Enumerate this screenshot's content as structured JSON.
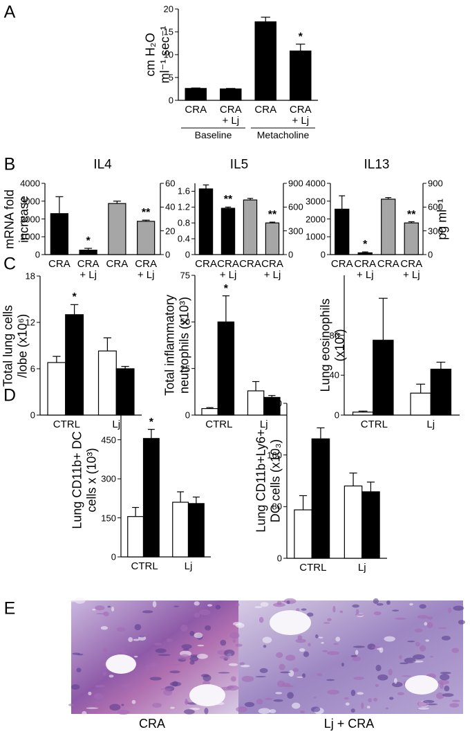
{
  "panel_labels": [
    "A",
    "B",
    "C",
    "D",
    "E"
  ],
  "histology": {
    "labels": [
      "CRA",
      "Lj + CRA"
    ]
  },
  "chart_data": [
    {
      "type": "bar",
      "ylabel": [
        "cm H₂O",
        "ml⁻¹ sec⁻¹"
      ],
      "categories": [
        "CRA",
        "CRA + Lj",
        "CRA",
        "CRA + Lj"
      ],
      "groups": [
        "Baseline",
        "Metacholine"
      ],
      "series": [
        {
          "color": "#000000",
          "values": [
            2.6,
            2.5,
            17.2,
            10.8
          ],
          "errors": [
            0.1,
            0.1,
            1.0,
            1.5
          ]
        }
      ],
      "ylim": [
        0,
        20
      ],
      "yticks": [
        0,
        5,
        10,
        15,
        20
      ],
      "annotations": [
        {
          "text": "*",
          "series": 0,
          "index": 3
        }
      ]
    },
    {
      "type": "bar",
      "title": "IL4",
      "ylabel": [
        "mRNA fold",
        "increase"
      ],
      "categories": [
        "CRA",
        "CRA + Lj",
        "CRA",
        "CRA + Lj"
      ],
      "series": [
        {
          "color": "#000000",
          "values": [
            2300,
            250,
            null,
            null
          ],
          "errors": [
            950,
            100,
            null,
            null
          ]
        },
        {
          "color": "#a6a6a6",
          "axis": "y2",
          "values": [
            null,
            null,
            43,
            28
          ],
          "errors": [
            null,
            null,
            2,
            1
          ]
        }
      ],
      "ylim": [
        0,
        4000
      ],
      "yticks": [
        0,
        1000,
        2000,
        3000,
        4000
      ],
      "y2lim": [
        0,
        60
      ],
      "y2ticks": [
        0,
        20,
        40,
        60
      ],
      "annotations": [
        {
          "text": "*",
          "series": 0,
          "index": 1
        },
        {
          "text": "**",
          "series": 1,
          "index": 3
        }
      ]
    },
    {
      "type": "bar",
      "title": "IL5",
      "categories": [
        "CRA",
        "CRA + Lj",
        "CRA",
        "CRA + Lj"
      ],
      "series": [
        {
          "color": "#000000",
          "values": [
            1.66,
            1.17,
            null,
            null
          ],
          "errors": [
            0.1,
            0.03,
            null,
            null
          ]
        },
        {
          "color": "#a6a6a6",
          "axis": "y2",
          "values": [
            null,
            null,
            690,
            400
          ],
          "errors": [
            null,
            null,
            20,
            10
          ]
        }
      ],
      "ylim": [
        0,
        1.8
      ],
      "yticks": [
        0,
        0.4,
        0.8,
        1.2,
        1.6
      ],
      "y2lim": [
        0,
        900
      ],
      "y2ticks": [
        0,
        300,
        600,
        900
      ],
      "annotations": [
        {
          "text": "**",
          "series": 0,
          "index": 1
        },
        {
          "text": "**",
          "series": 1,
          "index": 3
        }
      ]
    },
    {
      "type": "bar",
      "title": "IL13",
      "y2label": [
        "pg ml⁻¹"
      ],
      "categories": [
        "CRA",
        "CRA + Lj",
        "CRA",
        "CRA + Lj"
      ],
      "series": [
        {
          "color": "#000000",
          "values": [
            2550,
            100,
            null,
            null
          ],
          "errors": [
            750,
            50,
            null,
            null
          ]
        },
        {
          "color": "#a6a6a6",
          "axis": "y2",
          "values": [
            null,
            null,
            700,
            400
          ],
          "errors": [
            null,
            null,
            20,
            15
          ]
        }
      ],
      "ylim": [
        0,
        4000
      ],
      "yticks": [
        0,
        1000,
        2000,
        3000,
        4000
      ],
      "y2lim": [
        0,
        900
      ],
      "y2ticks": [
        0,
        300,
        600,
        900
      ],
      "annotations": [
        {
          "text": "*",
          "series": 0,
          "index": 1
        },
        {
          "text": "**",
          "series": 1,
          "index": 3
        }
      ]
    },
    {
      "type": "bar",
      "ylabel": [
        "Total lung cells",
        "/lobe (x10⁶)"
      ],
      "categories": [
        "CTRL",
        "Lj"
      ],
      "series": [
        {
          "color": "#ffffff",
          "values": [
            6.8,
            8.3
          ],
          "errors": [
            0.8,
            1.7
          ]
        },
        {
          "color": "#000000",
          "values": [
            13,
            6
          ],
          "errors": [
            1.3,
            0.3
          ]
        }
      ],
      "ylim": [
        0,
        18
      ],
      "yticks": [
        0,
        6,
        12,
        18
      ],
      "annotations": [
        {
          "text": "*",
          "series": 1,
          "index": 0
        }
      ]
    },
    {
      "type": "bar",
      "ylabel": [
        "Total inflammatory",
        "neutrophils (x10³)"
      ],
      "categories": [
        "CTRL",
        "Lj"
      ],
      "series": [
        {
          "color": "#ffffff",
          "values": [
            3.5,
            13
          ],
          "errors": [
            0.5,
            5
          ]
        },
        {
          "color": "#000000",
          "values": [
            50,
            9.5
          ],
          "errors": [
            14,
            1
          ]
        }
      ],
      "ylim": [
        0,
        75
      ],
      "yticks": [
        0,
        25,
        50,
        75
      ],
      "annotations": [
        {
          "text": "*",
          "series": 1,
          "index": 0
        }
      ]
    },
    {
      "type": "bar",
      "ylabel": [
        "Lung eosinophils",
        "(x10³)"
      ],
      "categories": [
        "CTRL",
        "Lj"
      ],
      "series": [
        {
          "color": "#ffffff",
          "values": [
            3,
            22
          ],
          "errors": [
            1,
            9
          ]
        },
        {
          "color": "#000000",
          "values": [
            75,
            46
          ],
          "errors": [
            42,
            7
          ]
        }
      ],
      "ylim": [
        0,
        140
      ],
      "yticks": [
        0,
        40,
        80
      ]
    },
    {
      "type": "bar",
      "ylabel": [
        "Lung CD11b+ DC",
        "cells x (10³)"
      ],
      "categories": [
        "CTRL",
        "Lj"
      ],
      "series": [
        {
          "color": "#ffffff",
          "values": [
            155,
            210
          ],
          "errors": [
            35,
            40
          ]
        },
        {
          "color": "#000000",
          "values": [
            455,
            205
          ],
          "errors": [
            35,
            25
          ]
        }
      ],
      "ylim": [
        0,
        590
      ],
      "yticks": [
        0,
        150,
        300,
        450
      ],
      "annotations": [
        {
          "text": "*",
          "series": 1,
          "index": 0
        }
      ]
    },
    {
      "type": "bar",
      "ylabel": [
        "Lung CD11b+Ly6+",
        "DC cells (x10₃)"
      ],
      "categories": [
        "CTRL",
        "Lj"
      ],
      "series": [
        {
          "color": "#ffffff",
          "values": [
            75,
            112
          ],
          "errors": [
            22,
            20
          ]
        },
        {
          "color": "#000000",
          "values": [
            185,
            103
          ],
          "errors": [
            17,
            15
          ]
        }
      ],
      "ylim": [
        0,
        240
      ],
      "yticks": [
        0,
        80,
        160,
        240
      ]
    }
  ]
}
